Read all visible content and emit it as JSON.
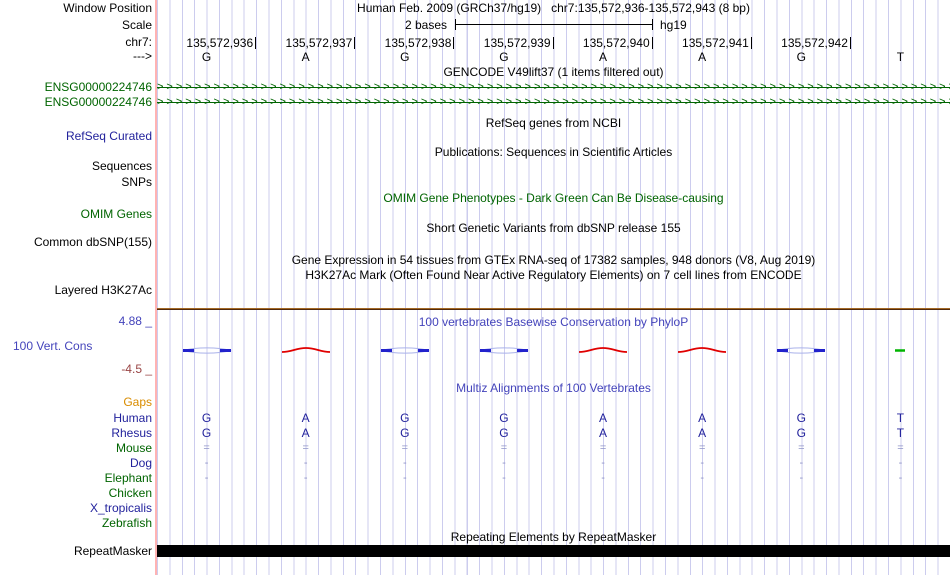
{
  "colors": {
    "dark_green": "#006400",
    "navy": "#22229c",
    "track_blue": "#4444bb",
    "orange": "#d98c00",
    "maroon": "#994444",
    "gridline": "#ccccee",
    "pink_guide": "#ffb3b3",
    "mark_blue": "#2222cc",
    "mark_red": "#e00000",
    "mark_green": "#00b400",
    "repeat_bar": "#000000"
  },
  "header": {
    "left_labels": {
      "window_position": "Window Position",
      "scale": "Scale",
      "chrom": "chr7:",
      "strand": "--->"
    },
    "title": "Human Feb. 2009 (GRCh37/hg19)   chr7:135,572,936-135,572,943 (8 bp)",
    "scale": {
      "label": "2 bases",
      "assembly": "hg19"
    },
    "coordinates": [
      "135,572,936",
      "135,572,937",
      "135,572,938",
      "135,572,939",
      "135,572,940",
      "135,572,941",
      "135,572,942",
      ""
    ],
    "bases": [
      "G",
      "A",
      "G",
      "G",
      "A",
      "A",
      "G",
      "T"
    ]
  },
  "tracks": {
    "gencode": {
      "center_label": "GENCODE V49lift37 (1 items filtered out)",
      "genes": [
        {
          "id": "ENSG00000224746"
        },
        {
          "id": "ENSG00000224746"
        }
      ],
      "arrow_glyph": ">",
      "arrow_repeat": 90
    },
    "refseq": {
      "center_label": "RefSeq genes from NCBI",
      "left_label": "RefSeq Curated"
    },
    "publications": {
      "center_label": "Publications: Sequences in Scientific Articles",
      "left_label_sequences": "Sequences",
      "left_label_snps": "SNPs"
    },
    "omim": {
      "center_label": "OMIM Gene Phenotypes - Dark Green Can Be Disease-causing",
      "left_label": "OMIM Genes"
    },
    "dbsnp": {
      "center_label": "Short Genetic Variants from dbSNP release 155",
      "left_label": "Common dbSNP(155)"
    },
    "gtex": {
      "center_label": "Gene Expression in 54 tissues from GTEx RNA-seq of 17382 samples, 948 donors (V8, Aug 2019)"
    },
    "h3k27ac": {
      "center_label": "H3K27Ac Mark (Often Found Near Active Regulatory Elements) on 7 cell lines from ENCODE",
      "left_label": "Layered H3K27Ac"
    },
    "conservation": {
      "center_label": "100 vertebrates Basewise Conservation by PhyloP",
      "left_label": "100 Vert. Cons",
      "max_value": "4.88 _",
      "min_value": "-4.5 _",
      "marks": [
        "blue",
        "red",
        "blue",
        "blue",
        "red",
        "red",
        "blue",
        "green"
      ]
    },
    "multiz": {
      "center_label": "Multiz Alignments of 100 Vertebrates",
      "gaps_label": "Gaps",
      "species": [
        {
          "name": "Human",
          "label_color": "navy",
          "cell_class": "seq",
          "cells": [
            "G",
            "A",
            "G",
            "G",
            "A",
            "A",
            "G",
            "T"
          ]
        },
        {
          "name": "Rhesus",
          "label_color": "navy",
          "cell_class": "seq",
          "cells": [
            "G",
            "A",
            "G",
            "G",
            "A",
            "A",
            "G",
            "T"
          ]
        },
        {
          "name": "Mouse",
          "label_color": "green",
          "cell_class": "faint",
          "cells": [
            "=",
            "=",
            "=",
            "=",
            "=",
            "=",
            "=",
            "="
          ]
        },
        {
          "name": "Dog",
          "label_color": "navy",
          "cell_class": "faint",
          "cells": [
            "-",
            "-",
            "-",
            "-",
            "-",
            "-",
            "-",
            "-"
          ]
        },
        {
          "name": "Elephant",
          "label_color": "green",
          "cell_class": "faint",
          "cells": [
            "-",
            "-",
            "-",
            "-",
            "-",
            "-",
            "-",
            "-"
          ]
        },
        {
          "name": "Chicken",
          "label_color": "green",
          "cell_class": "faint",
          "cells": [
            "",
            "",
            "",
            "",
            "",
            "",
            "",
            ""
          ]
        },
        {
          "name": "X_tropicalis",
          "label_color": "navy",
          "cell_class": "faint",
          "cells": [
            "",
            "",
            "",
            "",
            "",
            "",
            "",
            ""
          ]
        },
        {
          "name": "Zebrafish",
          "label_color": "green",
          "cell_class": "faint",
          "cells": [
            "",
            "",
            "",
            "",
            "",
            "",
            "",
            ""
          ]
        }
      ]
    },
    "repeatmasker": {
      "center_label": "Repeating Elements by RepeatMasker",
      "left_label": "RepeatMasker"
    }
  }
}
